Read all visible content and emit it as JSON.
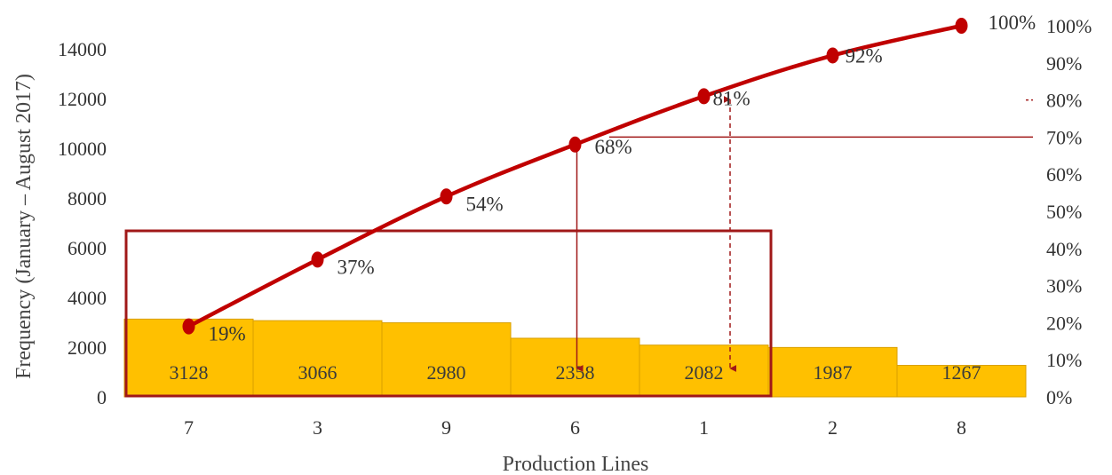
{
  "chart_data": {
    "type": "bar",
    "subtype": "pareto",
    "xlabel": "Production Lines",
    "ylabel": "Frequency (January – August 2017)",
    "categories": [
      "7",
      "3",
      "9",
      "6",
      "1",
      "2",
      "8"
    ],
    "values": [
      3128,
      3066,
      2980,
      2358,
      2082,
      1987,
      1267
    ],
    "value_labels": [
      "3128",
      "3066",
      "2980",
      "2358",
      "2082",
      "1987",
      "1267"
    ],
    "cumulative_percent": [
      19,
      37,
      54,
      68,
      81,
      92,
      100
    ],
    "cumulative_labels": [
      "19%",
      "37%",
      "54%",
      "68%",
      "81%",
      "92%",
      "100%"
    ],
    "ylim": [
      0,
      15000
    ],
    "y_ticks": [
      "0",
      "2000",
      "4000",
      "6000",
      "8000",
      "10000",
      "12000",
      "14000"
    ],
    "y2lim": [
      0,
      100
    ],
    "y2_ticks": [
      "0%",
      "10%",
      "20%",
      "30%",
      "40%",
      "50%",
      "60%",
      "70%",
      "80%",
      "90%",
      "100%"
    ],
    "grid": false,
    "legend": "none",
    "annotations": {
      "threshold_percent": 70,
      "highlighted_categories": [
        "7",
        "3",
        "9",
        "6",
        "1"
      ]
    },
    "colors": {
      "bar": "#ffc000",
      "bar_edge": "#d99f00",
      "line": "#c00000",
      "marker": "#c00000",
      "box": "#a01818",
      "arrow": "#a01818"
    }
  }
}
